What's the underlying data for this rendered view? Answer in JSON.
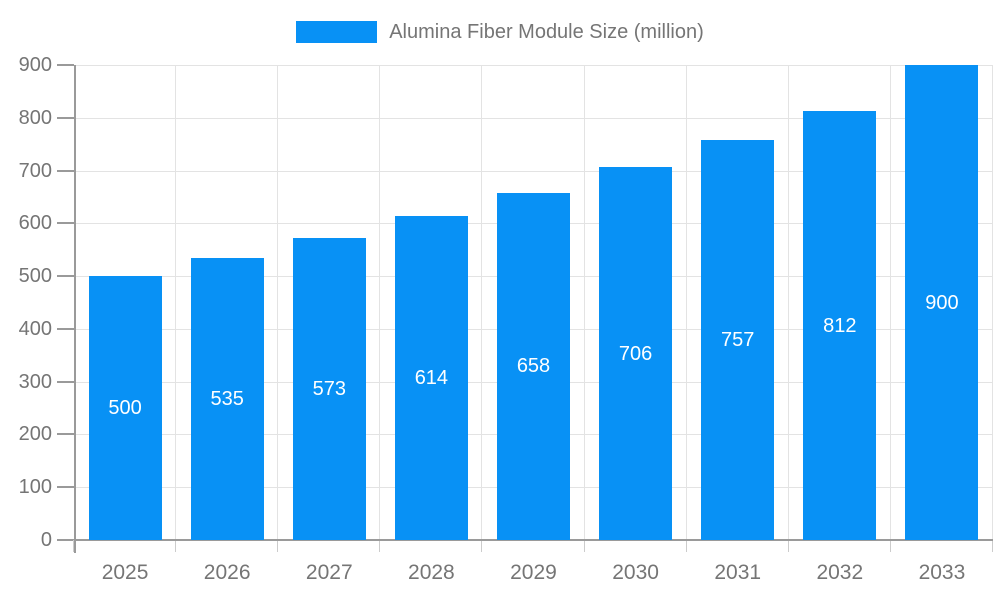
{
  "chart_data": {
    "type": "bar",
    "title": "",
    "legend": "Alumina Fiber Module Size (million)",
    "categories": [
      "2025",
      "2026",
      "2027",
      "2028",
      "2029",
      "2030",
      "2031",
      "2032",
      "2033"
    ],
    "series": [
      {
        "name": "Alumina Fiber Module Size (million)",
        "values": [
          500,
          535,
          573,
          614,
          658,
          706,
          757,
          812,
          900
        ]
      }
    ],
    "xlabel": "",
    "ylabel": "",
    "ylim": [
      0,
      900
    ],
    "yticks": [
      0,
      100,
      200,
      300,
      400,
      500,
      600,
      700,
      800,
      900
    ],
    "grid": true,
    "legend_position": "top-center",
    "bar_labels_inside": true,
    "colors": {
      "bar": "#0891f5",
      "bar_label": "#ffffff",
      "axis_text": "#757575",
      "legend_text": "#757575",
      "grid": "#e3e3e3",
      "axis_line": "#9a9a9a",
      "x_tick": "#cccccc"
    }
  }
}
